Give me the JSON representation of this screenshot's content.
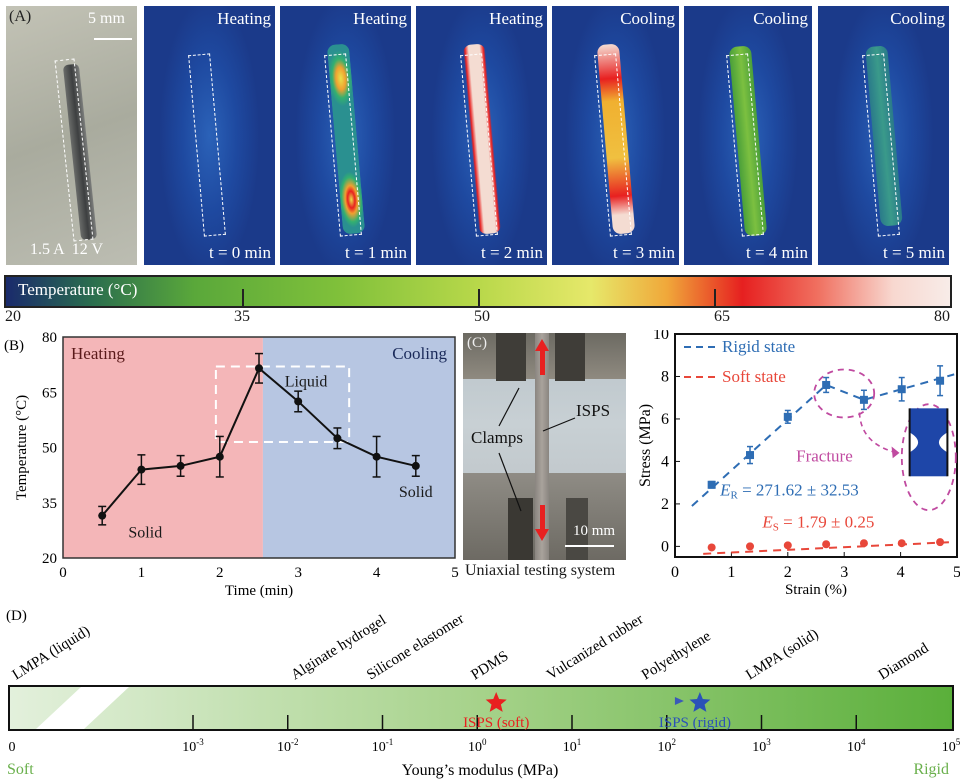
{
  "panel_a": {
    "label": "(A)",
    "scale_bar": "5 mm",
    "power_label": "1.5 A  12 V",
    "frames": [
      {
        "phase": "Heating",
        "time": "t = 0 min"
      },
      {
        "phase": "Heating",
        "time": "t = 1 min"
      },
      {
        "phase": "Heating",
        "time": "t = 2 min"
      },
      {
        "phase": "Cooling",
        "time": "t = 3 min"
      },
      {
        "phase": "Cooling",
        "time": "t = 4 min"
      },
      {
        "phase": "Cooling",
        "time": "t = 5 min"
      }
    ],
    "colorbar": {
      "title": "Temperature (°C)",
      "ticks": [
        "20",
        "35",
        "50",
        "65",
        "80"
      ],
      "range": [
        20,
        80
      ]
    }
  },
  "panel_c_photo": {
    "label": "(C)",
    "clamps_label": "Clamps",
    "sample_label": "ISPS",
    "scale_bar": "10 mm",
    "caption": "Uniaxial testing system"
  },
  "chart_data": [
    {
      "id": "B",
      "panel_label": "(B)",
      "type": "line",
      "title": "",
      "xlabel": "Time (min)",
      "ylabel": "Temperature (°C)",
      "xlim": [
        0,
        5
      ],
      "ylim": [
        20,
        80
      ],
      "xticks": [
        "0",
        "1",
        "2",
        "3",
        "4",
        "5"
      ],
      "yticks": [
        "20",
        "35",
        "50",
        "65",
        "80"
      ],
      "grid": false,
      "regions": [
        {
          "label": "Heating",
          "from": 0,
          "to": 2.55,
          "color": "#f4b6b8"
        },
        {
          "label": "Cooling",
          "from": 2.55,
          "to": 5,
          "color": "#b7c6e2"
        }
      ],
      "series": [
        {
          "name": "Temperature",
          "x": [
            0.5,
            1,
            1.5,
            2,
            2.5,
            3,
            3.5,
            4,
            4.5
          ],
          "y": [
            31.5,
            44,
            45,
            47.5,
            71.5,
            62.5,
            52.5,
            47.5,
            45
          ],
          "err": [
            2.5,
            4,
            2.8,
            5.5,
            4,
            2.8,
            2.8,
            5.5,
            2.8
          ]
        }
      ],
      "annotations": [
        {
          "text": "Solid",
          "x": 1.05,
          "y": 25.5
        },
        {
          "text": "Liquid",
          "x": 3.1,
          "y": 66.5
        },
        {
          "text": "Solid",
          "x": 4.5,
          "y": 36.5
        }
      ],
      "highlight_box": {
        "x": [
          1.95,
          3.65
        ],
        "y": [
          51.5,
          72
        ]
      }
    },
    {
      "id": "C",
      "type": "scatter",
      "title": "",
      "xlabel": "Strain (%)",
      "ylabel": "Stress (MPa)",
      "xlim": [
        0,
        5
      ],
      "ylim": [
        -0.5,
        10
      ],
      "xticks": [
        "0",
        "1",
        "2",
        "3",
        "4",
        "5"
      ],
      "yticks": [
        "0",
        "2",
        "4",
        "6",
        "8",
        "10"
      ],
      "grid": false,
      "legend": "top-left",
      "series": [
        {
          "name": "Rigid state",
          "color": "#2e6db4",
          "x": [
            0.65,
            1.33,
            2.0,
            2.68,
            3.35,
            4.02,
            4.7
          ],
          "y": [
            2.9,
            4.3,
            6.1,
            7.6,
            6.9,
            7.4,
            7.8
          ],
          "err": [
            0.15,
            0.4,
            0.3,
            0.35,
            0.45,
            0.55,
            0.7
          ],
          "fit_line": {
            "x": [
              0.3,
              2.68,
              3.35,
              4.95
            ],
            "y": [
              1.9,
              7.6,
              6.9,
              8.1
            ]
          }
        },
        {
          "name": "Soft state",
          "color": "#e8473a",
          "x": [
            0.65,
            1.33,
            2.0,
            2.68,
            3.35,
            4.02,
            4.7
          ],
          "y": [
            -0.05,
            0.0,
            0.05,
            0.1,
            0.15,
            0.15,
            0.2
          ],
          "err": [
            0.05,
            0.05,
            0.05,
            0.05,
            0.05,
            0.05,
            0.05
          ],
          "fit_line": {
            "x": [
              0.5,
              4.9
            ],
            "y": [
              -0.35,
              0.2
            ]
          }
        }
      ],
      "annotations": [
        {
          "text_main": "E",
          "text_sub": "R",
          "text_rest": " = 271.62 ± 32.53",
          "color": "#2e6db4"
        },
        {
          "text_main": "E",
          "text_sub": "S",
          "text_rest": " = 1.79 ± 0.25",
          "color": "#e8473a"
        },
        {
          "text": "Fracture",
          "color": "#c04aa0"
        }
      ]
    },
    {
      "id": "D",
      "panel_label": "(D)",
      "type": "scatter",
      "title": "",
      "xlabel": "Young’s modulus (MPa)",
      "scale": "log",
      "xticks": [
        {
          "base": "0",
          "exp": ""
        },
        {
          "base": "10",
          "exp": "-3"
        },
        {
          "base": "10",
          "exp": "-2"
        },
        {
          "base": "10",
          "exp": "-1"
        },
        {
          "base": "10",
          "exp": "0"
        },
        {
          "base": "10",
          "exp": "1"
        },
        {
          "base": "10",
          "exp": "2"
        },
        {
          "base": "10",
          "exp": "3"
        },
        {
          "base": "10",
          "exp": "4"
        },
        {
          "base": "10",
          "exp": "5"
        }
      ],
      "end_labels": {
        "left": "Soft",
        "right": "Rigid",
        "color": "#6ab04c"
      },
      "materials": [
        {
          "name": "LMPA (liquid)",
          "log_modulus": -5.6
        },
        {
          "name": "Alginate hydrogel",
          "log_modulus": -1.8
        },
        {
          "name": "Silicone elastomer",
          "log_modulus": -1.0
        },
        {
          "name": "PDMS",
          "log_modulus": 0.1
        },
        {
          "name": "Vulcanized rubber",
          "log_modulus": 0.9
        },
        {
          "name": "Polyethylene",
          "log_modulus": 1.9
        },
        {
          "name": "LMPA (solid)",
          "log_modulus": 3.0
        },
        {
          "name": "Diamond",
          "log_modulus": 4.4
        }
      ],
      "points": [
        {
          "name": "ISPS (soft)",
          "log_modulus": 0.2,
          "color": "#e82020"
        },
        {
          "name": "ISPS (rigid)",
          "log_modulus": 2.35,
          "color": "#2a52b8"
        }
      ]
    }
  ]
}
